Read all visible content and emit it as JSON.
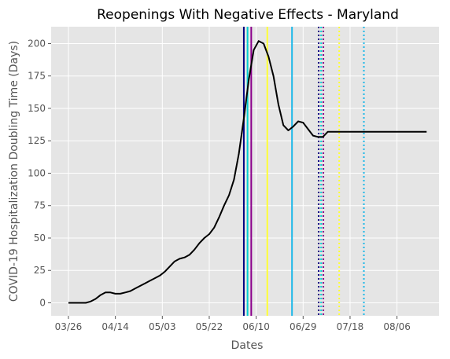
{
  "chart_data": {
    "type": "line",
    "title": "Reopenings With Negative Effects - Maryland",
    "xlabel": "Dates",
    "ylabel": "COVID-19 Hospitalization Doubling Time (Days)",
    "x_tick_labels": [
      "03/26",
      "04/14",
      "05/03",
      "05/22",
      "06/10",
      "06/29",
      "07/18",
      "08/06"
    ],
    "x_tick_days": [
      0,
      19,
      38,
      57,
      76,
      95,
      114,
      133
    ],
    "xlim_days": [
      -7,
      150
    ],
    "y_ticks": [
      0,
      25,
      50,
      75,
      100,
      125,
      150,
      175,
      200
    ],
    "y_tick_labels": [
      "0",
      "25",
      "50",
      "75",
      "100",
      "125",
      "150",
      "175",
      "200"
    ],
    "ylim": [
      -10,
      213
    ],
    "grid": true,
    "background": "#e5e5e5",
    "line_color": "#000000",
    "series": [
      {
        "x_days": [
          0,
          4,
          7,
          9,
          11,
          13,
          15,
          17,
          19,
          21,
          23,
          25,
          27,
          29,
          31,
          33,
          35,
          37,
          39,
          41,
          43,
          45,
          47,
          49,
          51,
          53,
          55,
          57,
          59,
          61,
          63,
          65,
          67,
          69,
          71,
          73,
          75,
          77,
          79,
          81,
          83,
          85,
          87,
          89,
          91,
          93,
          95,
          97,
          99,
          101,
          103,
          105,
          107,
          109,
          111,
          113,
          115,
          117,
          119,
          121,
          123,
          125,
          127,
          129,
          131,
          133,
          135,
          137,
          139,
          141,
          143,
          145
        ],
        "values": [
          0,
          0,
          0,
          1,
          3,
          6,
          8,
          8,
          7,
          7,
          8,
          9,
          11,
          13,
          15,
          17,
          19,
          21,
          24,
          28,
          32,
          34,
          35,
          37,
          41,
          46,
          50,
          53,
          58,
          66,
          75,
          83,
          95,
          115,
          142,
          172,
          195,
          202,
          200,
          190,
          175,
          153,
          137,
          133,
          136,
          140,
          139,
          134,
          129,
          128,
          128,
          132,
          132,
          132,
          132,
          132,
          132,
          132,
          132,
          132,
          132,
          132,
          132,
          132,
          132,
          132,
          132,
          132,
          132,
          132,
          132,
          132
        ]
      }
    ],
    "vertical_markers": [
      {
        "day": 71,
        "color": "#000080",
        "style": "solid"
      },
      {
        "day": 72.5,
        "color": "#00ced1",
        "style": "solid"
      },
      {
        "day": 74,
        "color": "#8b008b",
        "style": "solid"
      },
      {
        "day": 80.5,
        "color": "#ffff33",
        "style": "solid"
      },
      {
        "day": 90.5,
        "color": "#1fb8e8",
        "style": "solid"
      },
      {
        "day": 101.3,
        "color": "#000080",
        "style": "dotted"
      },
      {
        "day": 102.3,
        "color": "#00ced1",
        "style": "dotted"
      },
      {
        "day": 103.2,
        "color": "#8b008b",
        "style": "dotted"
      },
      {
        "day": 109.6,
        "color": "#ffff33",
        "style": "dotted"
      },
      {
        "day": 119.6,
        "color": "#1fb8e8",
        "style": "dotted"
      }
    ]
  }
}
